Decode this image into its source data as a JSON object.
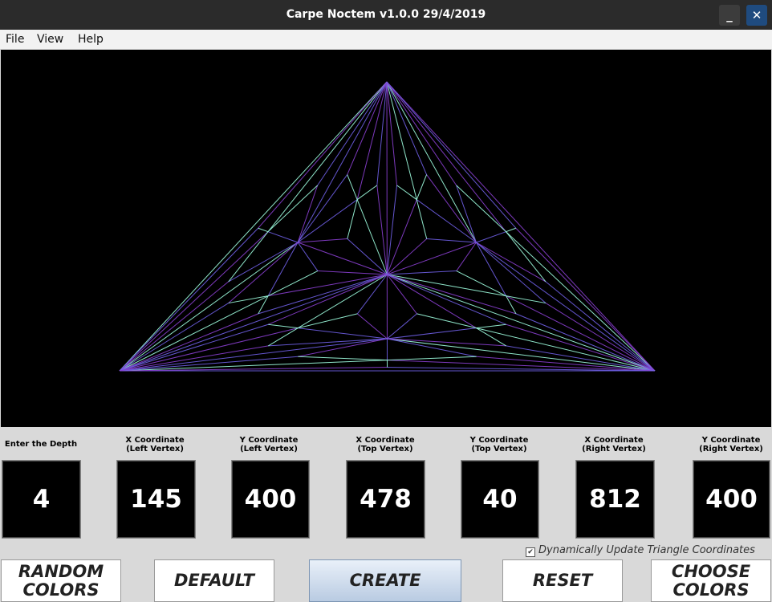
{
  "window": {
    "title": "Carpe Noctem v1.0.0 29/4/2019",
    "minimize_glyph": "_",
    "close_glyph": "✕"
  },
  "menu": {
    "file": "File",
    "view": "View",
    "help": "Help"
  },
  "colors": {
    "line_cool": "#9fffe0",
    "line_warm": "#8a3fd0",
    "line_mid": "#6f5fe6"
  },
  "triangle": {
    "left_vertex": [
      145,
      400
    ],
    "top_vertex": [
      478,
      40
    ],
    "right_vertex": [
      812,
      400
    ],
    "depth": 4
  },
  "inputs": {
    "depth": {
      "label": "Enter the Depth",
      "value": "4"
    },
    "x_left": {
      "label1": "X Coordinate",
      "label2": "(Left Vertex)",
      "value": "145"
    },
    "y_left": {
      "label1": "Y Coordinate",
      "label2": "(Left Vertex)",
      "value": "400"
    },
    "x_top": {
      "label1": "X Coordinate",
      "label2": "(Top Vertex)",
      "value": "478"
    },
    "y_top": {
      "label1": "Y Coordinate",
      "label2": "(Top Vertex)",
      "value": "40"
    },
    "x_right": {
      "label1": "X Coordinate",
      "label2": "(Right Vertex)",
      "value": "812"
    },
    "y_right": {
      "label1": "Y Coordinate",
      "label2": "(Right Vertex)",
      "value": "400"
    }
  },
  "checkbox": {
    "label": "Dynamically Update Triangle Coordinates",
    "checked": true,
    "glyph": "✔"
  },
  "buttons": {
    "random_line1": "RANDOM",
    "random_line2": "COLORS",
    "default": "DEFAULT",
    "create": "CREATE",
    "reset": "RESET",
    "choose_line1": "CHOOSE",
    "choose_line2": "COLORS"
  }
}
